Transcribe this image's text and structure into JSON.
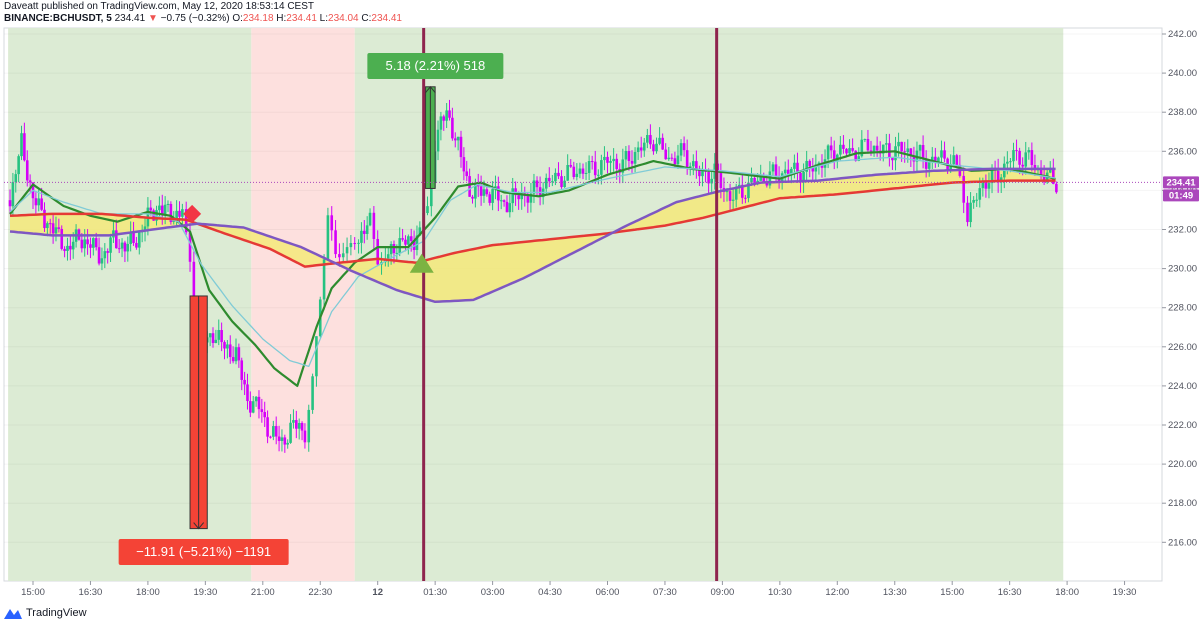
{
  "header": {
    "publisher": "Daveatt published on TradingView.com, May 12, 2020 18:53:14 CEST",
    "symbol": "BINANCE:BCHUSDT, 5",
    "last": "234.41",
    "change": "−0.75 (−0.32%)",
    "o_label": "O:",
    "o_value": "234.18",
    "h_label": "H:",
    "h_value": "234.41",
    "l_label": "L:",
    "l_value": "234.04",
    "c_label": "C:",
    "c_value": "234.41"
  },
  "footer": {
    "brand": "TradingView"
  },
  "chart_data": {
    "type": "candlestick",
    "ylim": [
      214.5,
      242.3
    ],
    "y_ticks": [
      "242.00",
      "240.00",
      "238.00",
      "236.00",
      "234.00",
      "232.00",
      "230.00",
      "228.00",
      "226.00",
      "224.00",
      "222.00",
      "220.00",
      "218.00",
      "216.00"
    ],
    "y_tick_values": [
      242,
      240,
      238,
      236,
      234,
      232,
      230,
      228,
      226,
      224,
      222,
      220,
      218,
      216
    ],
    "x_ticks": [
      "15:00",
      "16:30",
      "18:00",
      "19:30",
      "21:00",
      "22:30",
      "12",
      "01:30",
      "03:00",
      "04:30",
      "06:00",
      "07:30",
      "09:00",
      "10:30",
      "12:00",
      "13:30",
      "15:00",
      "16:30",
      "18:00",
      "19:30"
    ],
    "x_tick_times": [
      0,
      1.5,
      3,
      4.5,
      6,
      7.5,
      9,
      10.5,
      12,
      13.5,
      15,
      16.5,
      18,
      19.5,
      21,
      22.5,
      24,
      25.5,
      27,
      28.5
    ],
    "time_unit": "hours after 15:00 (May 11)",
    "last_price": "234.41",
    "countdown": "01:49",
    "background_zones": [
      {
        "from": -0.65,
        "to": 5.7,
        "color": "#dcebd4"
      },
      {
        "from": 5.7,
        "to": 8.4,
        "color": "#fde0de"
      },
      {
        "from": 8.4,
        "to": 26.9,
        "color": "#dcebd4"
      }
    ],
    "vertical_lines": [
      10.2,
      17.85
    ],
    "trades": [
      {
        "side": "short",
        "entry_time": 4.1,
        "exit_time": 4.55,
        "entry": 228.6,
        "exit": 216.7,
        "label": "−11.91 (−5.21%) −1191",
        "color": "#f44336"
      },
      {
        "side": "long",
        "entry_time": 10.25,
        "exit_time": 10.5,
        "entry": 234.1,
        "exit": 239.3,
        "label": "5.18 (2.21%) 518",
        "color": "#4caf50"
      }
    ],
    "signals": [
      {
        "type": "sell",
        "time": 4.05,
        "price": 232.8,
        "color": "#f23645"
      },
      {
        "type": "buy",
        "time": 10.15,
        "price": 230.2,
        "color": "#7cb342"
      }
    ],
    "series": [
      {
        "color": "#2e8b2e",
        "points": [
          [
            -0.6,
            232.8
          ],
          [
            0,
            234.3
          ],
          [
            0.8,
            233.2
          ],
          [
            1.5,
            232.7
          ],
          [
            2.2,
            232.4
          ],
          [
            3,
            232.9
          ],
          [
            3.6,
            232.7
          ],
          [
            4.1,
            231.9
          ],
          [
            4.6,
            228.9
          ],
          [
            5.2,
            227.3
          ],
          [
            5.8,
            226.1
          ],
          [
            6.3,
            224.9
          ],
          [
            6.9,
            224.0
          ],
          [
            7.4,
            227.0
          ],
          [
            7.8,
            229.0
          ],
          [
            8.4,
            230.3
          ],
          [
            9.0,
            231.1
          ],
          [
            9.8,
            231.1
          ],
          [
            10.5,
            232.6
          ],
          [
            11.1,
            234.2
          ],
          [
            11.7,
            234.4
          ],
          [
            12.3,
            233.9
          ],
          [
            13.2,
            233.7
          ],
          [
            14.0,
            234.0
          ],
          [
            15.0,
            234.8
          ],
          [
            16.2,
            235.5
          ],
          [
            17.2,
            235.1
          ],
          [
            18.2,
            234.9
          ],
          [
            19.5,
            234.6
          ],
          [
            20.5,
            235.3
          ],
          [
            21.5,
            235.9
          ],
          [
            22.5,
            236.0
          ],
          [
            23.5,
            235.5
          ],
          [
            24.5,
            235.0
          ],
          [
            25.5,
            235.1
          ],
          [
            26.5,
            234.7
          ],
          [
            26.8,
            234.5
          ]
        ]
      },
      {
        "color": "#80cbd6",
        "points": [
          [
            -0.6,
            232.9
          ],
          [
            0,
            234.0
          ],
          [
            0.8,
            233.4
          ],
          [
            1.8,
            232.8
          ],
          [
            3,
            232.8
          ],
          [
            3.8,
            232.4
          ],
          [
            4.4,
            230.2
          ],
          [
            5.2,
            228.1
          ],
          [
            6.0,
            226.4
          ],
          [
            6.7,
            225.3
          ],
          [
            7.2,
            225.0
          ],
          [
            7.8,
            227.8
          ],
          [
            8.5,
            229.6
          ],
          [
            9.4,
            230.6
          ],
          [
            10.2,
            231.4
          ],
          [
            10.9,
            233.5
          ],
          [
            11.6,
            234.3
          ],
          [
            12.5,
            233.9
          ],
          [
            13.5,
            233.9
          ],
          [
            15,
            234.6
          ],
          [
            16.5,
            235.2
          ],
          [
            18,
            235.0
          ],
          [
            19.5,
            234.7
          ],
          [
            21,
            235.5
          ],
          [
            22.5,
            235.7
          ],
          [
            24,
            235.3
          ],
          [
            25.5,
            235.0
          ],
          [
            26.8,
            234.6
          ]
        ]
      },
      {
        "color": "#e53935",
        "points": [
          [
            -0.6,
            232.7
          ],
          [
            0.5,
            232.8
          ],
          [
            1.8,
            232.8
          ],
          [
            3.0,
            232.6
          ],
          [
            4.0,
            232.5
          ],
          [
            5.0,
            231.8
          ],
          [
            6.2,
            231.0
          ],
          [
            7.1,
            230.1
          ],
          [
            8.0,
            230.3
          ],
          [
            9.0,
            230.5
          ],
          [
            10.0,
            230.3
          ],
          [
            11.0,
            230.8
          ],
          [
            12.0,
            231.2
          ],
          [
            13.5,
            231.5
          ],
          [
            15.0,
            231.8
          ],
          [
            16.5,
            232.2
          ],
          [
            17.5,
            232.6
          ],
          [
            18.5,
            233.1
          ],
          [
            19.5,
            233.6
          ],
          [
            21.0,
            233.8
          ],
          [
            22.5,
            234.1
          ],
          [
            24.0,
            234.4
          ],
          [
            25.5,
            234.5
          ],
          [
            26.8,
            234.5
          ]
        ]
      },
      {
        "color": "#7e57c2",
        "points": [
          [
            -0.6,
            231.9
          ],
          [
            0.5,
            231.7
          ],
          [
            2.0,
            231.7
          ],
          [
            3.5,
            232.1
          ],
          [
            4.3,
            232.3
          ],
          [
            5.5,
            232.1
          ],
          [
            7.0,
            231.1
          ],
          [
            8.3,
            229.9
          ],
          [
            9.5,
            228.9
          ],
          [
            10.5,
            228.3
          ],
          [
            11.5,
            228.4
          ],
          [
            12.8,
            229.5
          ],
          [
            14.0,
            230.7
          ],
          [
            15.5,
            232.2
          ],
          [
            16.8,
            233.4
          ],
          [
            17.8,
            233.9
          ],
          [
            19.0,
            234.4
          ],
          [
            20.5,
            234.5
          ],
          [
            22.0,
            234.8
          ],
          [
            23.5,
            235.0
          ],
          [
            25.0,
            235.1
          ],
          [
            26.0,
            235.1
          ],
          [
            26.8,
            235.1
          ]
        ]
      }
    ],
    "candles_summary": [
      [
        -0.6,
        233.5
      ],
      [
        -0.3,
        236.4
      ],
      [
        0,
        233.6
      ],
      [
        0.3,
        232.6
      ],
      [
        0.6,
        231.8
      ],
      [
        0.9,
        231.0
      ],
      [
        1.2,
        231.6
      ],
      [
        1.5,
        231.2
      ],
      [
        1.8,
        230.6
      ],
      [
        2.1,
        231.5
      ],
      [
        2.4,
        231.1
      ],
      [
        2.7,
        231.5
      ],
      [
        3.0,
        232.6
      ],
      [
        3.3,
        233.2
      ],
      [
        3.6,
        232.7
      ],
      [
        3.9,
        233.0
      ],
      [
        4.1,
        230.2
      ],
      [
        4.2,
        226.4
      ],
      [
        4.4,
        226.2
      ],
      [
        4.7,
        226.7
      ],
      [
        5.0,
        226.0
      ],
      [
        5.3,
        225.6
      ],
      [
        5.6,
        223.3
      ],
      [
        5.9,
        222.9
      ],
      [
        6.2,
        221.6
      ],
      [
        6.5,
        221.1
      ],
      [
        6.8,
        222.0
      ],
      [
        7.1,
        221.7
      ],
      [
        7.3,
        224.4
      ],
      [
        7.5,
        228.4
      ],
      [
        7.7,
        232.3
      ],
      [
        7.9,
        230.6
      ],
      [
        8.1,
        231.2
      ],
      [
        8.3,
        231.4
      ],
      [
        8.5,
        231.6
      ],
      [
        8.8,
        232.3
      ],
      [
        9.0,
        230.3
      ],
      [
        9.2,
        230.5
      ],
      [
        9.5,
        231.3
      ],
      [
        9.8,
        231.3
      ],
      [
        10.1,
        231.8
      ],
      [
        10.3,
        233.3
      ],
      [
        10.5,
        236.5
      ],
      [
        10.8,
        238.1
      ],
      [
        11.1,
        236.2
      ],
      [
        11.4,
        234.0
      ],
      [
        11.7,
        233.9
      ],
      [
        12.0,
        233.9
      ],
      [
        12.3,
        233.3
      ],
      [
        12.6,
        233.7
      ],
      [
        13.0,
        233.8
      ],
      [
        13.4,
        234.4
      ],
      [
        13.8,
        234.7
      ],
      [
        14.2,
        235.0
      ],
      [
        14.6,
        235.1
      ],
      [
        15.0,
        235.5
      ],
      [
        15.4,
        235.3
      ],
      [
        15.8,
        236.1
      ],
      [
        16.2,
        236.6
      ],
      [
        16.6,
        235.6
      ],
      [
        17.0,
        235.9
      ],
      [
        17.4,
        234.8
      ],
      [
        17.8,
        234.9
      ],
      [
        18.2,
        233.6
      ],
      [
        18.6,
        234.1
      ],
      [
        19.0,
        234.6
      ],
      [
        19.4,
        234.8
      ],
      [
        19.8,
        235.0
      ],
      [
        20.2,
        235.0
      ],
      [
        20.6,
        235.5
      ],
      [
        21.0,
        236.1
      ],
      [
        21.4,
        235.9
      ],
      [
        21.8,
        236.3
      ],
      [
        22.2,
        236.0
      ],
      [
        22.6,
        236.1
      ],
      [
        23.0,
        235.9
      ],
      [
        23.4,
        235.5
      ],
      [
        23.8,
        235.7
      ],
      [
        24.2,
        235.0
      ],
      [
        24.4,
        232.6
      ],
      [
        24.8,
        234.4
      ],
      [
        25.2,
        234.8
      ],
      [
        25.6,
        235.8
      ],
      [
        26.0,
        235.6
      ],
      [
        26.4,
        234.7
      ],
      [
        26.8,
        234.4
      ]
    ]
  }
}
